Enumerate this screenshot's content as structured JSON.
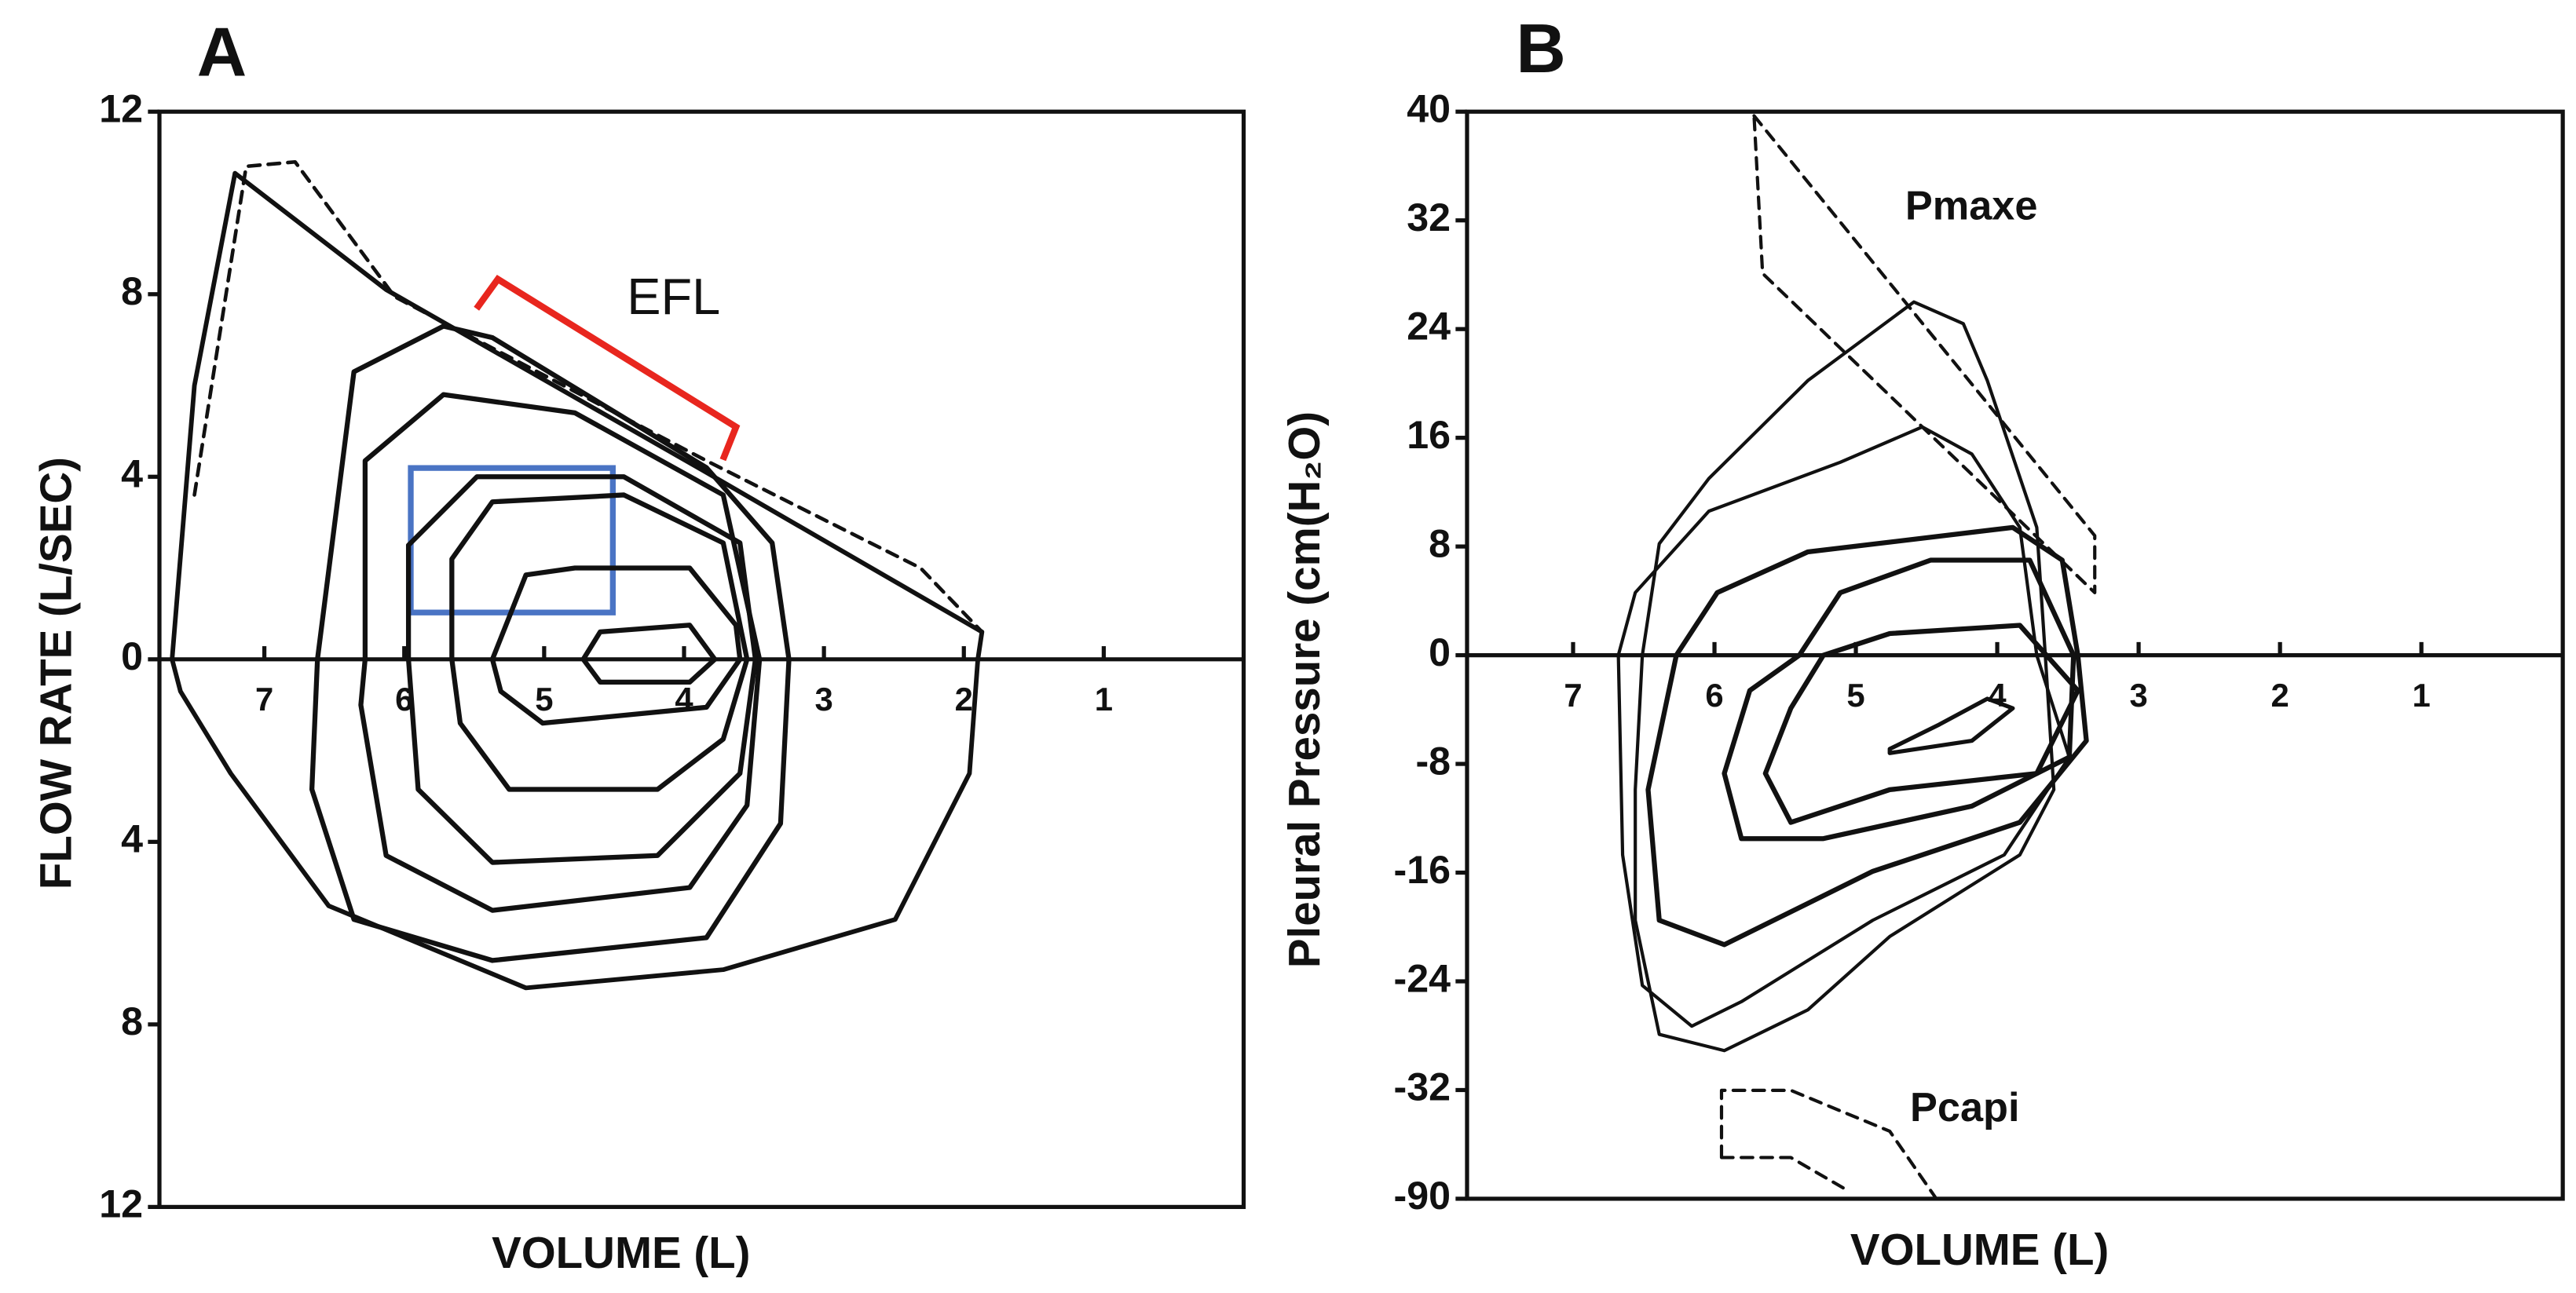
{
  "chart_data": [
    {
      "type": "line",
      "panel": "A",
      "ylabel": "FLOW RATE (L/SEC)",
      "xlabel": "VOLUME (L)",
      "annotations": [
        "EFL"
      ],
      "xlim": [
        7.75,
        0
      ],
      "xticks": [
        7,
        6,
        5,
        4,
        3,
        2,
        1
      ],
      "ylim": [
        -12,
        12
      ],
      "yticks": [
        {
          "value": -12,
          "label": "12"
        },
        {
          "value": -8,
          "label": "8"
        },
        {
          "value": -4,
          "label": "4"
        },
        0,
        4,
        8,
        12
      ],
      "series": [
        {
          "color": "#111",
          "width": 2.8,
          "dash": false,
          "x": [
            7.66,
            7.5,
            7.21,
            6.13,
            3.9,
            1.87,
            1.9,
            1.96,
            2.49,
            3.72,
            5.13,
            6.54,
            7.24,
            7.6,
            7.66
          ],
          "values": [
            0,
            6.0,
            10.65,
            8.1,
            4.2,
            0.6,
            0,
            -2.5,
            -5.7,
            -6.8,
            -7.2,
            -5.4,
            -2.5,
            -0.7,
            0
          ]
        },
        {
          "color": "#111",
          "width": 2.2,
          "dash": true,
          "x": [
            7.5,
            7.13,
            6.78,
            6.07,
            3.84,
            2.31,
            1.87
          ],
          "values": [
            3.6,
            10.8,
            10.9,
            7.95,
            4.35,
            2.0,
            0.6
          ]
        },
        {
          "color": "#111",
          "width": 3,
          "dash": false,
          "x": [
            6.62,
            6.36,
            5.72,
            5.37,
            3.84,
            3.37,
            3.25,
            3.31,
            3.84,
            5.37,
            6.36,
            6.66,
            6.62
          ],
          "values": [
            0,
            6.3,
            7.3,
            7.05,
            4.2,
            2.55,
            0,
            -3.6,
            -6.1,
            -6.6,
            -5.7,
            -2.85,
            0
          ]
        },
        {
          "color": "#111",
          "width": 3,
          "dash": false,
          "x": [
            6.28,
            6.28,
            5.72,
            4.78,
            3.72,
            3.46,
            3.55,
            3.96,
            5.37,
            6.13,
            6.31,
            6.28
          ],
          "values": [
            0,
            4.35,
            5.8,
            5.4,
            3.6,
            0,
            -3.2,
            -5.0,
            -5.5,
            -4.3,
            -1.0,
            0
          ]
        },
        {
          "color": "#111",
          "width": 3,
          "dash": false,
          "x": [
            5.97,
            5.97,
            5.48,
            4.43,
            3.6,
            3.49,
            3.6,
            4.19,
            5.37,
            5.9,
            5.97
          ],
          "values": [
            0,
            2.5,
            4.0,
            4.0,
            2.55,
            0,
            -2.5,
            -4.3,
            -4.45,
            -2.85,
            0
          ]
        },
        {
          "color": "#111",
          "width": 3,
          "dash": false,
          "x": [
            5.66,
            5.66,
            5.37,
            4.43,
            3.72,
            3.55,
            3.72,
            4.19,
            5.25,
            5.6,
            5.66
          ],
          "values": [
            0,
            2.2,
            3.45,
            3.6,
            2.55,
            0,
            -1.75,
            -2.85,
            -2.85,
            -1.4,
            0
          ]
        },
        {
          "color": "#111",
          "width": 3,
          "dash": false,
          "x": [
            5.37,
            5.13,
            4.78,
            3.96,
            3.63,
            3.6,
            3.84,
            5.01,
            5.31,
            5.37
          ],
          "values": [
            0,
            1.85,
            2.0,
            2.0,
            0.75,
            0,
            -1.05,
            -1.4,
            -0.7,
            0
          ]
        },
        {
          "color": "#111",
          "width": 3,
          "dash": false,
          "x": [
            4.72,
            4.6,
            3.96,
            3.78,
            3.96,
            4.6,
            4.72
          ],
          "values": [
            0,
            0.6,
            0.75,
            0,
            -0.5,
            -0.5,
            0
          ]
        }
      ]
    },
    {
      "type": "line",
      "panel": "B",
      "ylabel": "Pleural Pressure (cm(H₂O)",
      "xlabel": "VOLUME (L)",
      "annotations": [
        "Pmaxe",
        "Pcapi"
      ],
      "xlim": [
        7.75,
        0
      ],
      "xticks": [
        7,
        6,
        5,
        4,
        3,
        2,
        1
      ],
      "ylim": [
        -90,
        40
      ],
      "ybreak": [
        -32,
        -90
      ],
      "yticks": [
        -90,
        -32,
        -24,
        -16,
        -8,
        0,
        8,
        16,
        24,
        32,
        40
      ],
      "series": [
        {
          "color": "#111",
          "width": 2,
          "dash": true,
          "x": [
            5.72,
            3.31,
            3.31,
            5.66,
            5.72
          ],
          "values": [
            39.7,
            8.8,
            4.6,
            28.1,
            39.7
          ]
        },
        {
          "color": "#111",
          "width": 2,
          "dash": true,
          "x": [
            5.95,
            5.95,
            5.46,
            4.76,
            4.44,
            null,
            5.95,
            5.46,
            5.05
          ],
          "values": [
            -68,
            -32.2,
            -32.2,
            -54,
            -89,
            null,
            -68,
            -68,
            -86
          ]
        },
        {
          "color": "#111",
          "width": 2,
          "dash": false,
          "x": [
            6.51,
            6.39,
            6.04,
            5.34,
            4.59,
            4.24,
            4.07,
            3.72,
            3.66,
            3.6,
            3.84,
            4.76,
            5.34,
            5.93,
            6.39,
            6.56,
            6.56,
            6.51
          ],
          "values": [
            0,
            8.2,
            13,
            20.2,
            26,
            24.4,
            20.2,
            9.4,
            0,
            -9.9,
            -14.7,
            -20.7,
            -26.1,
            -29.1,
            -27.9,
            -19.5,
            -9.9,
            0
          ]
        },
        {
          "color": "#111",
          "width": 2,
          "dash": false,
          "x": [
            6.68,
            6.56,
            6.04,
            5.11,
            4.53,
            4.18,
            3.84,
            3.72,
            3.49,
            3.95,
            4.88,
            5.81,
            6.16,
            6.51,
            6.65,
            6.68
          ],
          "values": [
            0,
            4.6,
            10.6,
            14.2,
            16.8,
            14.8,
            9.4,
            0,
            -7.5,
            -14.7,
            -19.5,
            -25.5,
            -27.3,
            -24.3,
            -14.7,
            0
          ]
        },
        {
          "color": "#111",
          "width": 3,
          "dash": false,
          "x": [
            6.27,
            5.98,
            5.34,
            3.89,
            3.54,
            3.43,
            3.37,
            3.84,
            4.88,
            5.93,
            6.39,
            6.47,
            6.27
          ],
          "values": [
            0,
            4.6,
            7.6,
            9.4,
            7,
            0,
            -6.3,
            -12.3,
            -15.9,
            -21.3,
            -19.5,
            -9.9,
            0
          ]
        },
        {
          "color": "#111",
          "width": 3,
          "dash": false,
          "x": [
            5.4,
            5.11,
            4.47,
            3.77,
            3.46,
            3.49,
            4.18,
            5.23,
            5.81,
            5.93,
            5.75,
            5.4
          ],
          "values": [
            0,
            4.6,
            7,
            7,
            0,
            -7.5,
            -11.1,
            -13.5,
            -13.5,
            -8.7,
            -2.6,
            0
          ]
        },
        {
          "color": "#111",
          "width": 3,
          "dash": false,
          "x": [
            5.23,
            4.76,
            3.84,
            3.43,
            3.72,
            4.76,
            5.46,
            5.64,
            5.46,
            5.23
          ],
          "values": [
            0,
            1.6,
            2.2,
            -2.6,
            -8.7,
            -9.9,
            -12.3,
            -8.7,
            -3.9,
            0
          ]
        },
        {
          "color": "#111",
          "width": 2.5,
          "dash": false,
          "x": [
            4.76,
            4.41,
            4.07,
            3.89,
            4.18,
            4.76,
            4.76
          ],
          "values": [
            -6.9,
            -5.1,
            -3.2,
            -3.9,
            -6.3,
            -7.2,
            -6.9
          ]
        }
      ]
    }
  ]
}
